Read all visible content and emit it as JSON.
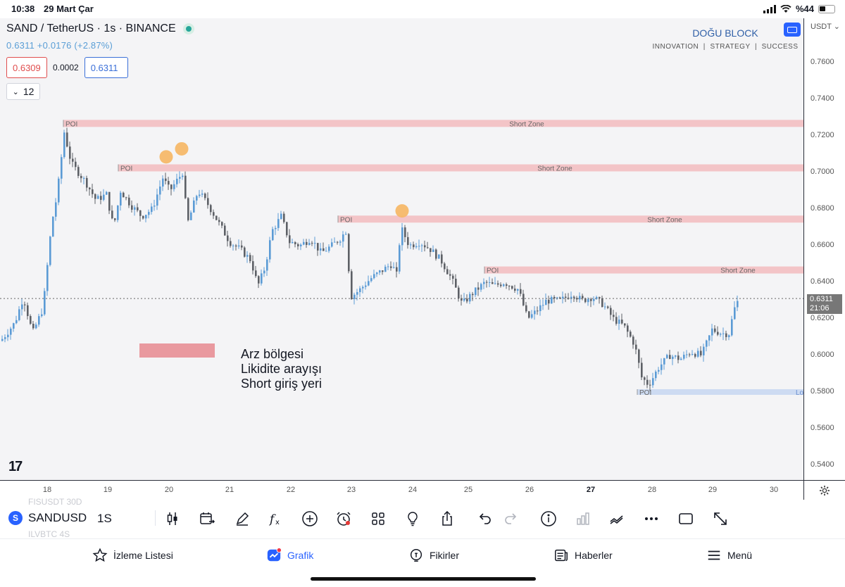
{
  "status": {
    "time": "10:38",
    "date": "29 Mart Çar",
    "battery": "%44"
  },
  "legend": {
    "title": "SAND / TetherUS · 1s · BINANCE",
    "values": "0.6311 +0.0176 (+2.87%)",
    "bid": "0.6309",
    "spread": "0.0002",
    "ask": "0.6311",
    "collapse_count": "12"
  },
  "branding": {
    "name": "DOĞU BLOCK",
    "tagline": "INNOVATION  |  STRATEGY  |  SUCCESS"
  },
  "price_axis": {
    "currency": "USDT",
    "ticks": [
      "0.7600",
      "0.7400",
      "0.7200",
      "0.7000",
      "0.6800",
      "0.6600",
      "0.6400",
      "0.6200",
      "0.6000",
      "0.5800",
      "0.5600",
      "0.5400"
    ],
    "last_price": "0.6311",
    "countdown": "21:06"
  },
  "time_axis": {
    "labels": [
      "18",
      "19",
      "20",
      "21",
      "22",
      "23",
      "24",
      "25",
      "26",
      "27",
      "28",
      "29",
      "30"
    ],
    "bold_label": "27"
  },
  "zones": {
    "poi_label": "POI",
    "short_label": "Short Zone",
    "long_label_partial": "Lo"
  },
  "annotation": {
    "line1": "Arz bölgesi",
    "line2": "Likidite arayışı",
    "line3": "Short giriş yeri"
  },
  "watermark": {
    "logo": "17"
  },
  "toolbar": {
    "symbol": "SANDUSD",
    "symbol_badge": "S",
    "timeframe": "1S",
    "ghost_top": "FISUSDT   30D",
    "ghost_bottom": "ILVBTC     4S"
  },
  "tabs": {
    "watchlist": "İzleme Listesi",
    "chart": "Grafik",
    "ideas": "Fikirler",
    "news": "Haberler",
    "menu": "Menü"
  },
  "colors": {
    "accent": "#2962ff",
    "up": "#5b9bd5",
    "down": "#5d6066",
    "zone": "#f2b8bb",
    "marker": "#f5b869"
  }
}
